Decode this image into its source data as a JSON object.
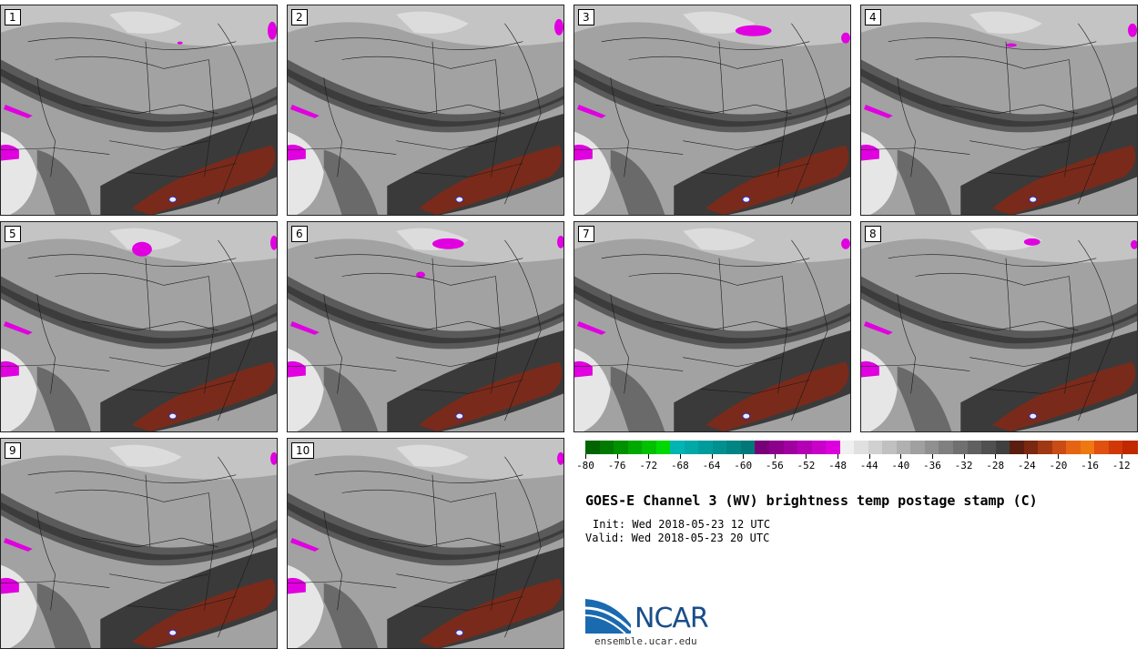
{
  "panels": [
    {
      "label": "1"
    },
    {
      "label": "2"
    },
    {
      "label": "3"
    },
    {
      "label": "4"
    },
    {
      "label": "5"
    },
    {
      "label": "6"
    },
    {
      "label": "7"
    },
    {
      "label": "8"
    },
    {
      "label": "9"
    },
    {
      "label": "10"
    }
  ],
  "colorbar": {
    "ticks": [
      "-80",
      "-76",
      "-72",
      "-68",
      "-64",
      "-60",
      "-56",
      "-52",
      "-48",
      "-44",
      "-40",
      "-36",
      "-32",
      "-28",
      "-24",
      "-20",
      "-16",
      "-12"
    ],
    "colors": [
      "#006400",
      "#007a00",
      "#009000",
      "#00a800",
      "#00c000",
      "#00d800",
      "#00b4b4",
      "#00a8a8",
      "#009c9c",
      "#009090",
      "#008484",
      "#007878",
      "#780078",
      "#8c008c",
      "#a000a0",
      "#b400b4",
      "#c800c8",
      "#dc00dc",
      "#f0f0f0",
      "#e0e0e0",
      "#d0d0d0",
      "#c0c0c0",
      "#b0b0b0",
      "#a0a0a0",
      "#909090",
      "#808080",
      "#707070",
      "#606060",
      "#505050",
      "#404040",
      "#5a1e10",
      "#7a2810",
      "#a03814",
      "#c84c14",
      "#e46414",
      "#f07810",
      "#e05010",
      "#d03808",
      "#c02800"
    ],
    "accent_colors": {
      "magenta": "#e000e0",
      "dry_slot": "#7a2a1a",
      "background_gray": "#9a9a9a"
    }
  },
  "title": "GOES-E Channel 3 (WV) brightness temp postage stamp (C)",
  "init": "Init: Wed 2018-05-23 12 UTC",
  "valid": "Valid: Wed 2018-05-23 20 UTC",
  "logo": {
    "text": "NCAR",
    "site": "ensemble.ucar.edu"
  }
}
